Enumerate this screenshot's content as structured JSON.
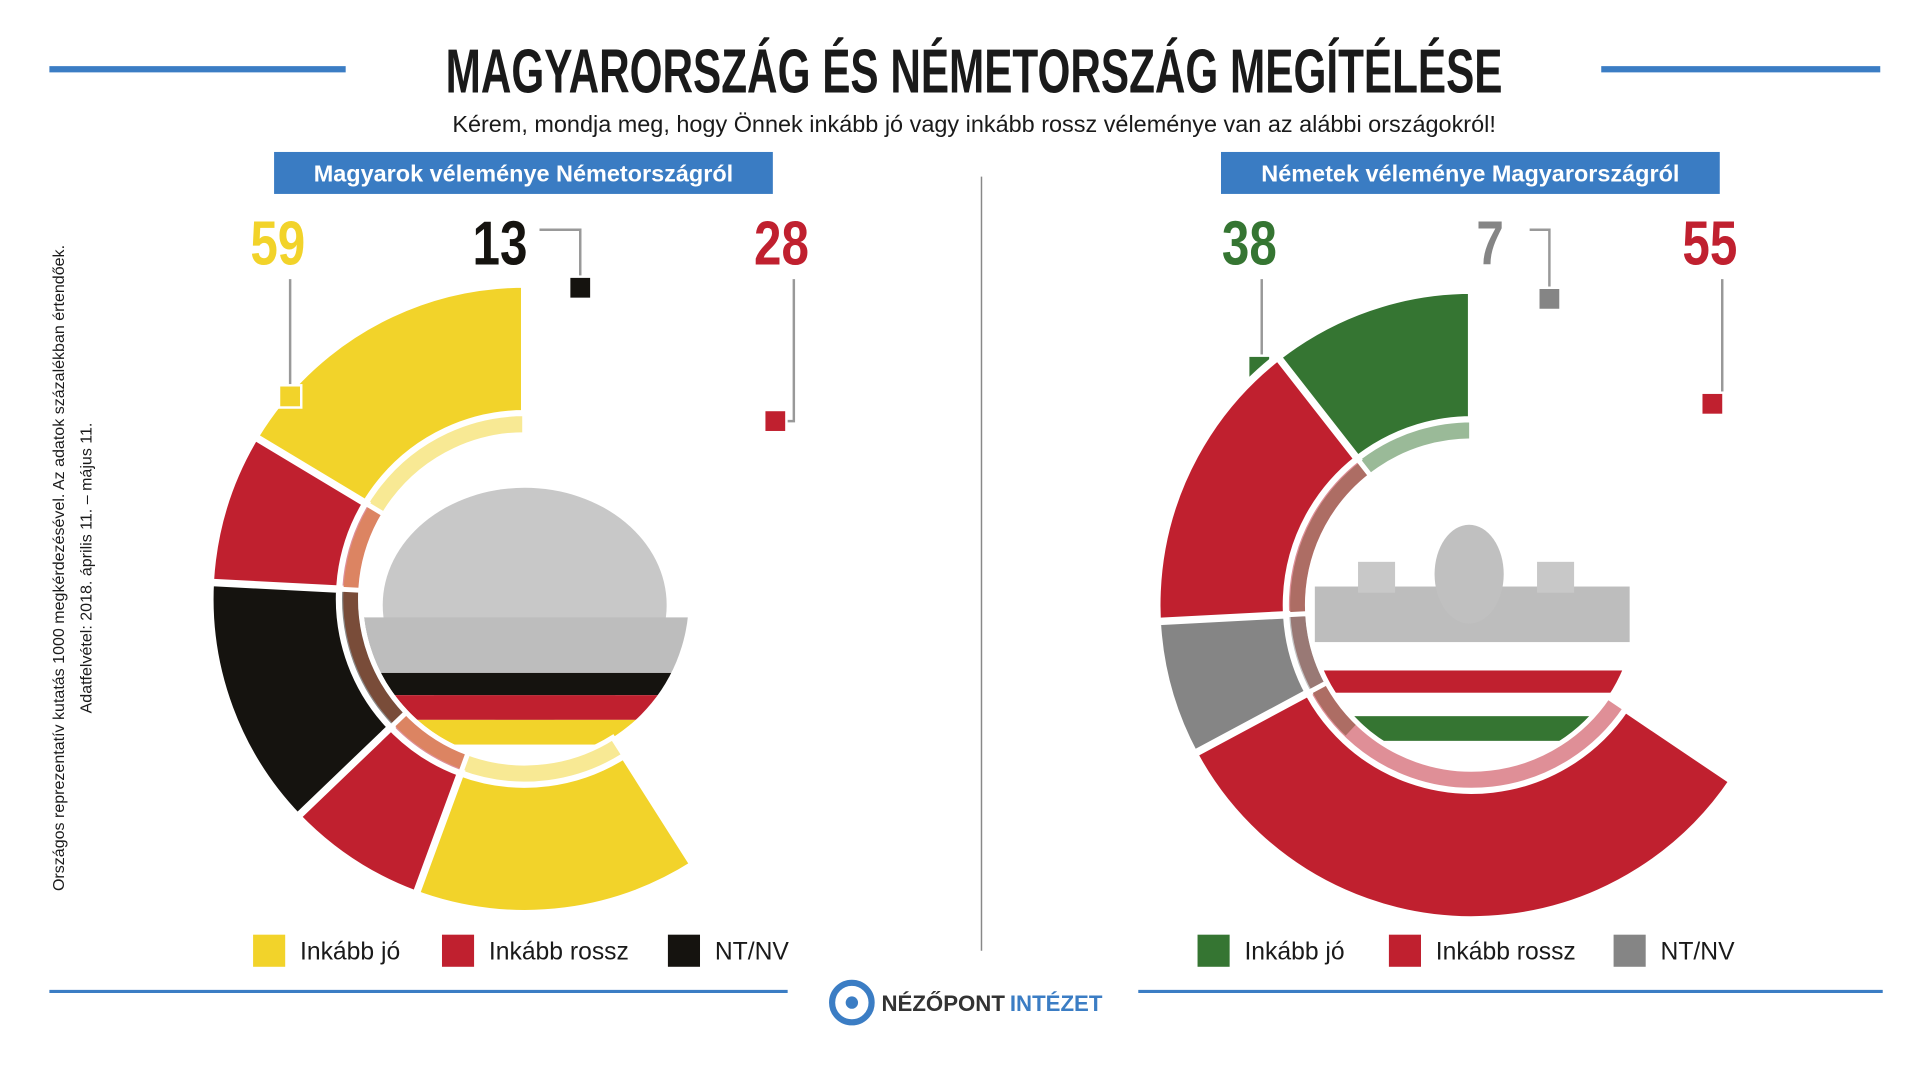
{
  "title": "MAGYARORSZÁG ÉS NÉMETORSZÁG MEGÍTÉLÉSE",
  "subtitle": "Kérem, mondja meg, hogy Önnek inkább jó vagy inkább rossz véleménye van az alábbi országokról!",
  "note": [
    "Országos reprezentatív kutatás 1000 megkérdezésével. Az adatok százalékban értendőek.",
    "Adatfelvétel: 2018. április 11. – május 11."
  ],
  "logo": {
    "name": "NÉZŐPONT",
    "suffix": "INTÉZET"
  },
  "chart_data": [
    {
      "type": "donut",
      "title": "Magyarok véleménye Németországról",
      "categories": [
        "Inkább jó",
        "Inkább rossz",
        "NT/NV"
      ],
      "values": [
        59,
        28,
        13
      ],
      "colors": [
        "#f2d32a",
        "#c0202f",
        "#15130f"
      ]
    },
    {
      "type": "donut",
      "title": "Németek véleménye Magyarországról",
      "categories": [
        "Inkább jó",
        "Inkább rossz",
        "NT/NV"
      ],
      "values": [
        38,
        55,
        7
      ],
      "colors": [
        "#357532",
        "#c0202f",
        "#858585"
      ]
    }
  ]
}
